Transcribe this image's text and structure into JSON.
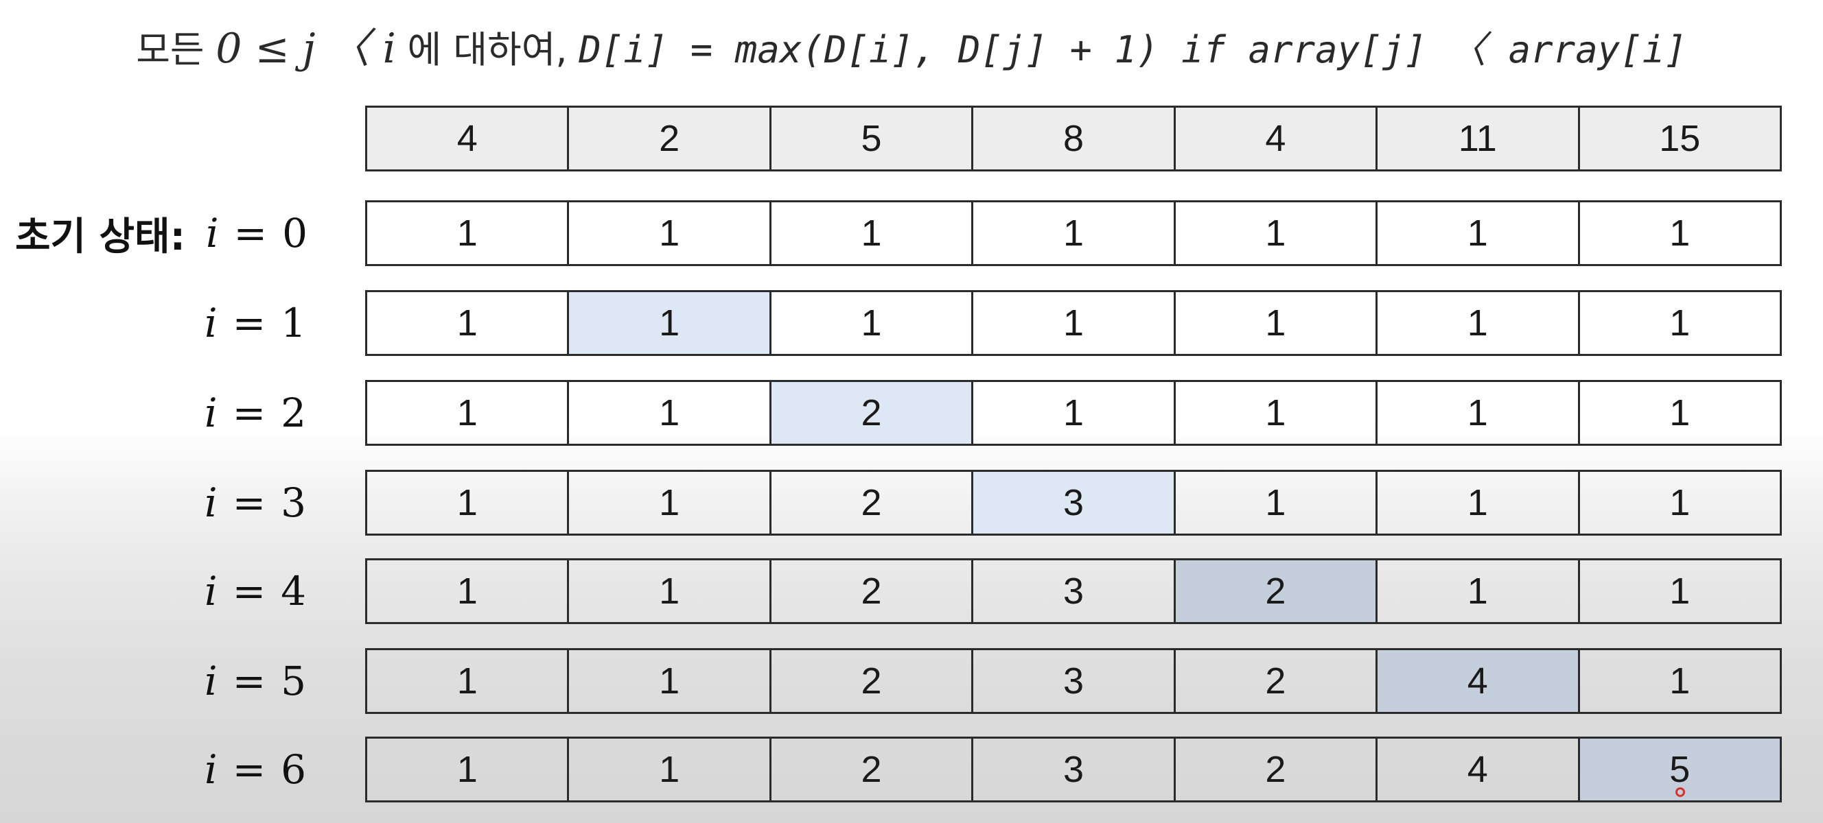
{
  "formula": {
    "prefix_ko": "모든",
    "condition": "0 ≤ j 〈 i",
    "suffix_ko": "에 대하여,",
    "expression": "D[i] = max(D[i], D[j] + 1) if array[j] 〈 array[i]"
  },
  "array": [
    "4",
    "2",
    "5",
    "8",
    "4",
    "11",
    "15"
  ],
  "initial_label": "초기 상태:",
  "rows": [
    {
      "var": "i",
      "eq": "=",
      "index": "0",
      "values": [
        "1",
        "1",
        "1",
        "1",
        "1",
        "1",
        "1"
      ],
      "highlight": null
    },
    {
      "var": "i",
      "eq": "=",
      "index": "1",
      "values": [
        "1",
        "1",
        "1",
        "1",
        "1",
        "1",
        "1"
      ],
      "highlight": 1
    },
    {
      "var": "i",
      "eq": "=",
      "index": "2",
      "values": [
        "1",
        "1",
        "2",
        "1",
        "1",
        "1",
        "1"
      ],
      "highlight": 2
    },
    {
      "var": "i",
      "eq": "=",
      "index": "3",
      "values": [
        "1",
        "1",
        "2",
        "3",
        "1",
        "1",
        "1"
      ],
      "highlight": 3
    },
    {
      "var": "i",
      "eq": "=",
      "index": "4",
      "values": [
        "1",
        "1",
        "2",
        "3",
        "2",
        "1",
        "1"
      ],
      "highlight": 4
    },
    {
      "var": "i",
      "eq": "=",
      "index": "5",
      "values": [
        "1",
        "1",
        "2",
        "3",
        "2",
        "4",
        "1"
      ],
      "highlight": 5
    },
    {
      "var": "i",
      "eq": "=",
      "index": "6",
      "values": [
        "1",
        "1",
        "2",
        "3",
        "2",
        "4",
        "5"
      ],
      "highlight": 6
    }
  ],
  "colors": {
    "highlight_light": "#dde8f4",
    "highlight_dark": "#c5cfdc",
    "array_cell": "#ededed",
    "border": "#2b2b2b",
    "cursor": "#d8312a"
  }
}
